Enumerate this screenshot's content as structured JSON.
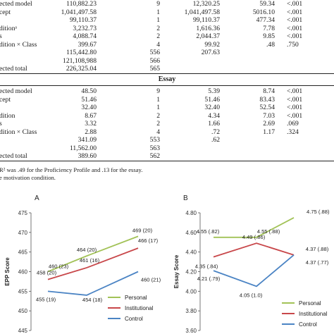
{
  "table_proficiency": {
    "rows": [
      {
        "source": "ected model",
        "ss": "110,882.23",
        "df": "9",
        "ms": "12,320.25",
        "f": "59.34",
        "p": "<.001"
      },
      {
        "source": "cept",
        "ss": "1,041,497.58",
        "df": "1",
        "ms": "1,041,497.58",
        "f": "5016.10",
        "p": "<.001"
      },
      {
        "source": "",
        "ss": "99,110.37",
        "df": "1",
        "ms": "99,110.37",
        "f": "477.34",
        "p": "<.001"
      },
      {
        "source": "ditionᵃ",
        "ss": "3,232.73",
        "df": "2",
        "ms": "1,616.36",
        "f": "7.78",
        "p": "<.001"
      },
      {
        "source": "s",
        "ss": "4,088.74",
        "df": "2",
        "ms": "2,044.37",
        "f": "9.85",
        "p": "<.001"
      },
      {
        "source": "dition × Class",
        "ss": "399.67",
        "df": "4",
        "ms": "99.92",
        "f": ".48",
        "p": ".750"
      },
      {
        "source": "",
        "ss": "115,442.80",
        "df": "556",
        "ms": "207.63",
        "f": "",
        "p": ""
      },
      {
        "source": "",
        "ss": "121,108,988",
        "df": "566",
        "ms": "",
        "f": "",
        "p": ""
      },
      {
        "source": "ected total",
        "ss": "226,325.04",
        "df": "565",
        "ms": "",
        "f": "",
        "p": ""
      }
    ]
  },
  "essay_title": "Essay",
  "table_essay": {
    "rows": [
      {
        "source": "ected model",
        "ss": "48.50",
        "df": "9",
        "ms": "5.39",
        "f": "8.74",
        "p": "<.001"
      },
      {
        "source": "cept",
        "ss": "51.46",
        "df": "1",
        "ms": "51.46",
        "f": "83.43",
        "p": "<.001"
      },
      {
        "source": "",
        "ss": "32.40",
        "df": "1",
        "ms": "32.40",
        "f": "52.54",
        "p": "<.001"
      },
      {
        "source": "dition",
        "ss": "8.67",
        "df": "2",
        "ms": "4.34",
        "f": "7.03",
        "p": "<.001"
      },
      {
        "source": "s",
        "ss": "3.32",
        "df": "2",
        "ms": "1.66",
        "f": "2.69",
        "p": ".069"
      },
      {
        "source": "dition × Class",
        "ss": "2.88",
        "df": "4",
        "ms": ".72",
        "f": "1.17",
        "p": ".324"
      },
      {
        "source": "",
        "ss": "341.09",
        "df": "553",
        "ms": ".62",
        "f": "",
        "p": ""
      },
      {
        "source": "",
        "ss": "11,562.00",
        "df": "563",
        "ms": "",
        "f": "",
        "p": ""
      },
      {
        "source": "ected total",
        "ss": "389.60",
        "df": "562",
        "ms": "",
        "f": "",
        "p": ""
      }
    ]
  },
  "notes": {
    "line1": "R² was .49 for the Proficiency Profile and .13 for the essay.",
    "line2": "e motivation condition."
  },
  "colors": {
    "personal": "#a2c257",
    "institutional": "#c8474a",
    "control": "#4b84c4"
  },
  "chart_data": [
    {
      "type": "line",
      "title": "A",
      "ylabel": "EPP Score",
      "xlabel": "",
      "categories": [
        "",
        "",
        ""
      ],
      "ylim": [
        445,
        475
      ],
      "yticks": [
        445,
        450,
        455,
        460,
        465,
        470,
        475
      ],
      "grid": false,
      "legend": "bottom-right",
      "series": [
        {
          "name": "Personal",
          "values": [
            460,
            464,
            469
          ],
          "labels": [
            "460 (23)",
            "464 (20)",
            "469 (20)"
          ],
          "color": "#a2c257"
        },
        {
          "name": "Institutional",
          "values": [
            458,
            461,
            466
          ],
          "labels": [
            "458 (20)",
            "461 (16)",
            "466 (17)"
          ],
          "color": "#c8474a"
        },
        {
          "name": "Control",
          "values": [
            455,
            454,
            460
          ],
          "labels": [
            "455 (19)",
            "454 (18)",
            "460 (21)"
          ],
          "color": "#4b84c4"
        }
      ]
    },
    {
      "type": "line",
      "title": "B",
      "ylabel": "Essay Score",
      "xlabel": "",
      "categories": [
        "",
        "",
        ""
      ],
      "ylim": [
        3.6,
        4.8
      ],
      "yticks": [
        3.6,
        3.8,
        4.0,
        4.2,
        4.4,
        4.6,
        4.8
      ],
      "ytick_labels": [
        "3.60",
        "3.80",
        "4.00",
        "4.20",
        "4.40",
        "4.60",
        "4.80"
      ],
      "grid": false,
      "legend": "bottom-right",
      "series": [
        {
          "name": "Personal",
          "values": [
            4.55,
            4.55,
            4.75
          ],
          "labels": [
            "4.55 (.82)",
            "4.55 (.88)",
            "4.75 (.88)"
          ],
          "color": "#a2c257"
        },
        {
          "name": "Institutional",
          "values": [
            4.35,
            4.49,
            4.37
          ],
          "labels": [
            "4.35 (.84)",
            "4.49 (.86)",
            "4.37 (.88)"
          ],
          "color": "#c8474a"
        },
        {
          "name": "Control",
          "values": [
            4.21,
            4.05,
            4.37
          ],
          "labels": [
            "4.21 (.79)",
            "4.05 (1.0)",
            "4.37 (.77)"
          ],
          "color": "#4b84c4"
        }
      ]
    }
  ]
}
